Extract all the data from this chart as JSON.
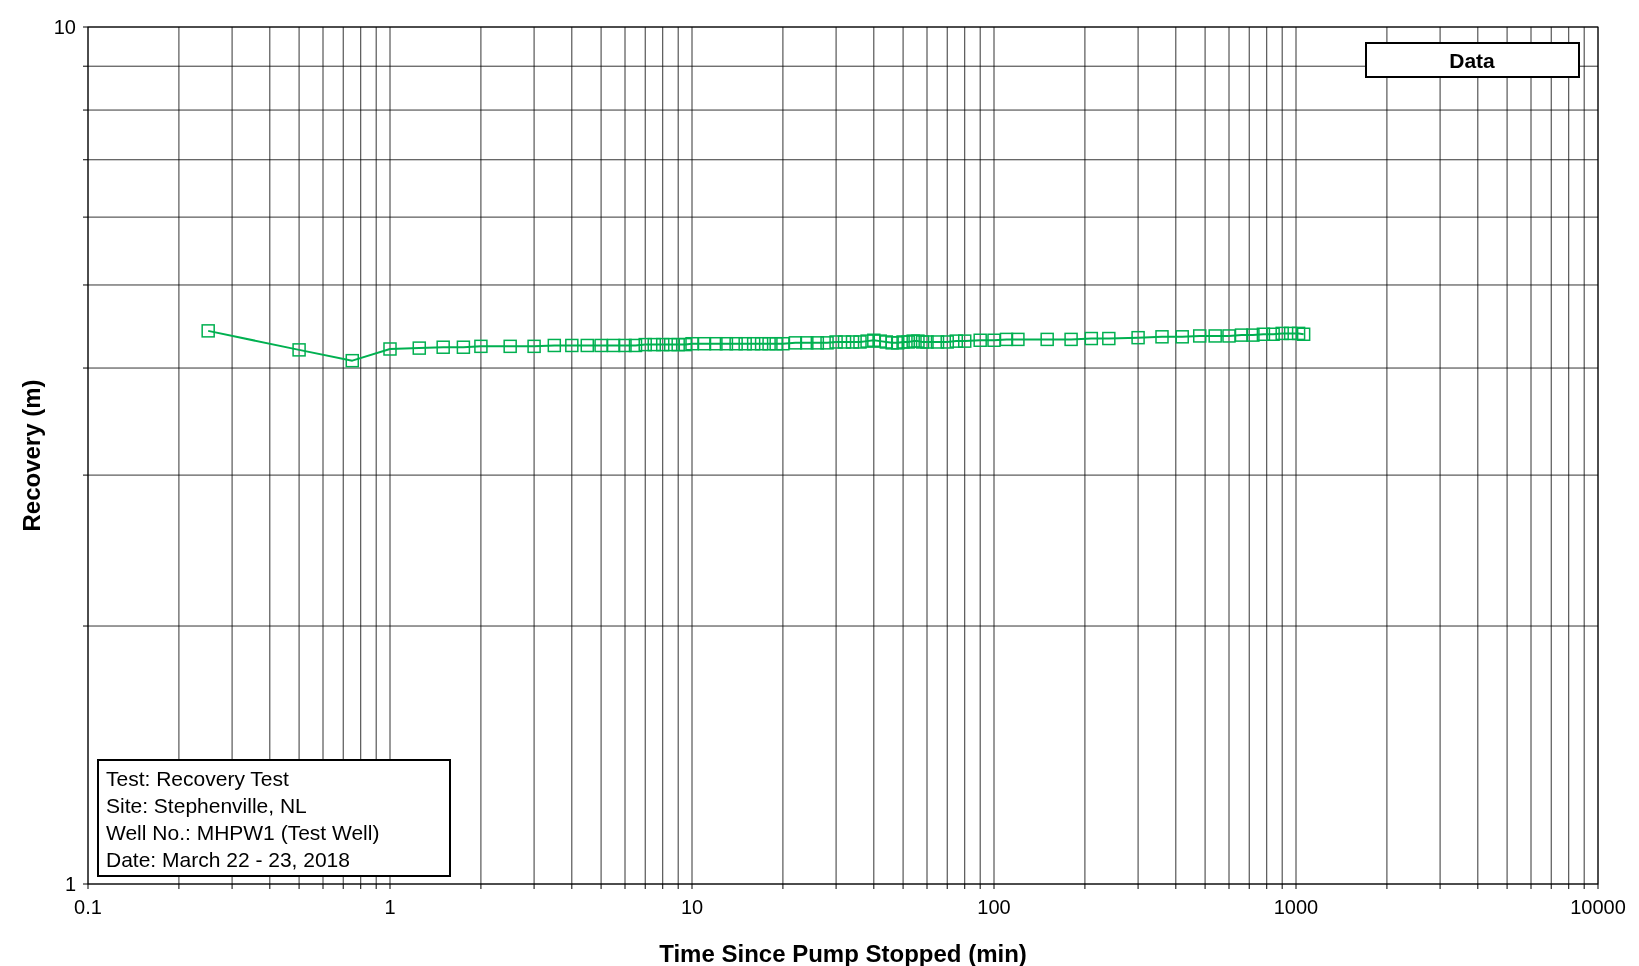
{
  "chart_data": {
    "type": "line",
    "xlabel": "Time Since Pump Stopped (min)",
    "ylabel": "Recovery (m)",
    "log": "xy",
    "grid": true,
    "marker": "square",
    "line_style": "solid",
    "xlim": [
      0.1,
      10000
    ],
    "ylim": [
      1,
      10
    ],
    "xticks": [
      0.1,
      {
        "value": 0.2,
        "label": null
      },
      {
        "value": 0.3,
        "label": null
      },
      {
        "value": 0.4,
        "label": null
      },
      {
        "value": 0.5,
        "label": null
      },
      {
        "value": 0.6,
        "label": null
      },
      {
        "value": 0.7,
        "label": null
      },
      {
        "value": 0.8,
        "label": null
      },
      {
        "value": 0.9,
        "label": null
      },
      1,
      {
        "value": 2,
        "label": null
      },
      {
        "value": 3,
        "label": null
      },
      {
        "value": 4,
        "label": null
      },
      {
        "value": 5,
        "label": null
      },
      {
        "value": 6,
        "label": null
      },
      {
        "value": 7,
        "label": null
      },
      {
        "value": 8,
        "label": null
      },
      {
        "value": 9,
        "label": null
      },
      10,
      {
        "value": 20,
        "label": null
      },
      {
        "value": 30,
        "label": null
      },
      {
        "value": 40,
        "label": null
      },
      {
        "value": 50,
        "label": null
      },
      {
        "value": 60,
        "label": null
      },
      {
        "value": 70,
        "label": null
      },
      {
        "value": 80,
        "label": null
      },
      {
        "value": 90,
        "label": null
      },
      100,
      {
        "value": 200,
        "label": null
      },
      {
        "value": 300,
        "label": null
      },
      {
        "value": 400,
        "label": null
      },
      {
        "value": 500,
        "label": null
      },
      {
        "value": 600,
        "label": null
      },
      {
        "value": 700,
        "label": null
      },
      {
        "value": 800,
        "label": null
      },
      {
        "value": 900,
        "label": null
      },
      1000,
      {
        "value": 2000,
        "label": null
      },
      {
        "value": 3000,
        "label": null
      },
      {
        "value": 4000,
        "label": null
      },
      {
        "value": 5000,
        "label": null
      },
      {
        "value": 6000,
        "label": null
      },
      {
        "value": 7000,
        "label": null
      },
      {
        "value": 8000,
        "label": null
      },
      {
        "value": 9000,
        "label": null
      },
      10000
    ],
    "yticks": [
      1,
      {
        "value": 2,
        "label": null
      },
      {
        "value": 3,
        "label": null
      },
      {
        "value": 4,
        "label": null
      },
      {
        "value": 5,
        "label": null
      },
      {
        "value": 6,
        "label": null
      },
      {
        "value": 7,
        "label": null
      },
      {
        "value": 8,
        "label": null
      },
      {
        "value": 9,
        "label": null
      },
      10
    ],
    "annotations": [
      "Data",
      "Test: Recovery Test\nSite: Stephenville, NL\nWell No.: MHPW1 (Test Well)\nDate: March 22 - 23, 2018"
    ],
    "series": [
      {
        "color": "#00b050",
        "x": [
          0.25,
          0.5,
          0.75,
          1,
          1.25,
          1.5,
          1.75,
          2,
          2.5,
          3,
          3.5,
          4,
          4.5,
          5,
          5.5,
          6,
          6.5,
          7,
          7.5,
          8,
          8.5,
          9,
          9.5,
          10,
          11,
          12,
          13,
          14,
          15,
          16,
          17,
          18,
          19,
          20,
          22,
          24,
          26,
          28,
          30,
          32,
          34,
          36,
          38,
          40,
          42,
          44,
          46,
          48,
          50,
          52,
          54,
          56,
          58,
          60,
          65,
          70,
          75,
          80,
          90,
          100,
          110,
          120,
          150,
          180,
          210,
          240,
          300,
          360,
          420,
          480,
          540,
          600,
          660,
          720,
          780,
          840,
          900,
          960,
          1020,
          1060
        ],
        "values": [
          4.42,
          4.2,
          4.08,
          4.21,
          4.22,
          4.23,
          4.23,
          4.24,
          4.24,
          4.24,
          4.25,
          4.25,
          4.25,
          4.25,
          4.25,
          4.25,
          4.25,
          4.26,
          4.26,
          4.26,
          4.26,
          4.26,
          4.26,
          4.27,
          4.27,
          4.27,
          4.27,
          4.27,
          4.27,
          4.27,
          4.27,
          4.27,
          4.27,
          4.27,
          4.28,
          4.28,
          4.28,
          4.28,
          4.29,
          4.29,
          4.29,
          4.29,
          4.3,
          4.31,
          4.3,
          4.29,
          4.28,
          4.28,
          4.29,
          4.29,
          4.3,
          4.3,
          4.29,
          4.29,
          4.29,
          4.29,
          4.3,
          4.3,
          4.31,
          4.31,
          4.32,
          4.32,
          4.32,
          4.32,
          4.33,
          4.33,
          4.34,
          4.35,
          4.35,
          4.36,
          4.36,
          4.36,
          4.37,
          4.37,
          4.38,
          4.38,
          4.39,
          4.39,
          4.39,
          4.38
        ]
      }
    ]
  }
}
